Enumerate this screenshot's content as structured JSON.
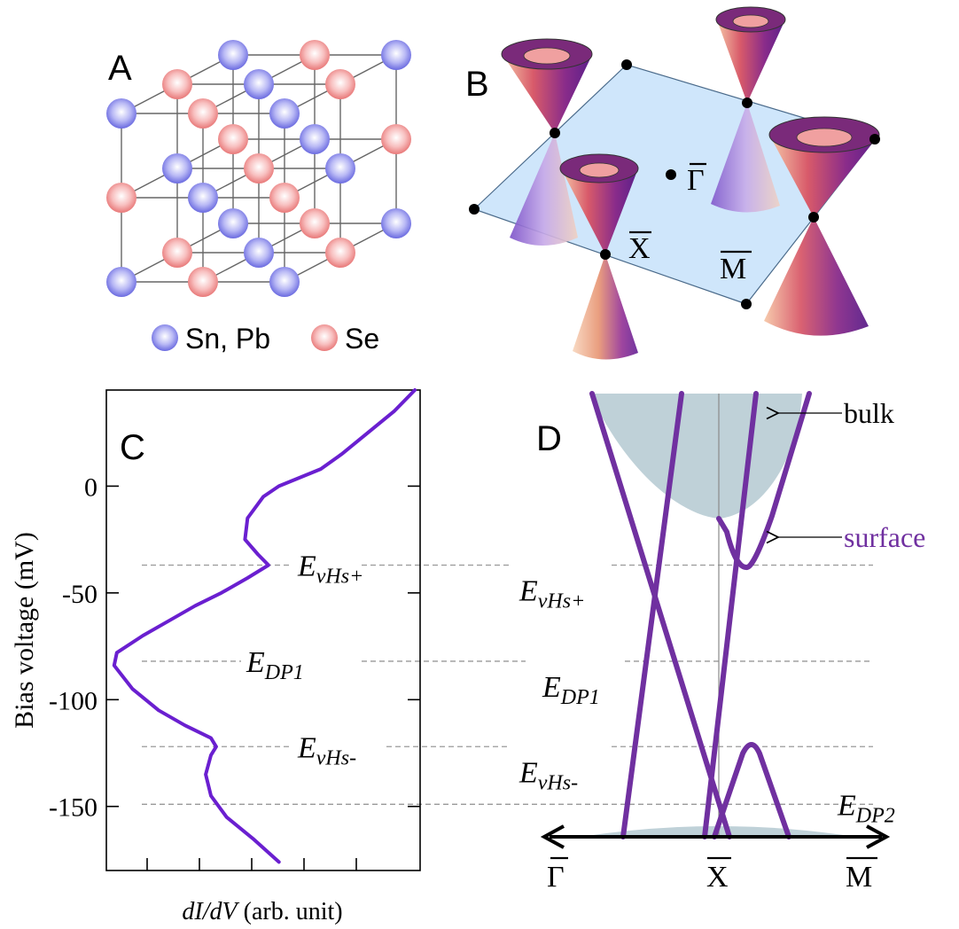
{
  "panels": {
    "a": {
      "label": "A",
      "legend": [
        {
          "text": "Sn, Pb",
          "color": "#7d7de8"
        },
        {
          "text": "Se",
          "color": "#ee8888"
        }
      ]
    },
    "b": {
      "label": "B",
      "points": {
        "gamma": "Γ",
        "x": "X",
        "m": "M"
      }
    },
    "c": {
      "label": "C",
      "ylabel": "Bias voltage (mV)",
      "xlabel_italic": "dI/dV",
      "xlabel_rest": " (arb. unit)",
      "yticks": [
        "0",
        "-50",
        "-100",
        "-150"
      ],
      "line_color": "#6a1fd0"
    },
    "d": {
      "label": "D",
      "bulk_label": "bulk",
      "surface_label": "surface",
      "axis_points": {
        "gamma": "Γ",
        "x": "X",
        "m": "M"
      },
      "surface_color": "#7030a0",
      "bulk_color": "#bfd1d8"
    }
  },
  "energy_levels": [
    {
      "main": "E",
      "sub": "vHs+",
      "mV": -37
    },
    {
      "main": "E",
      "sub": "DP1",
      "mV": -82
    },
    {
      "main": "E",
      "sub": "vHs-",
      "mV": -122
    },
    {
      "main": "E",
      "sub": "DP2",
      "mV": -149
    }
  ],
  "chart_data": {
    "type": "line",
    "series": [
      {
        "x": [
          5.9,
          5.5,
          5.0,
          4.5,
          4.1,
          3.3,
          3.0,
          2.7,
          2.65,
          2.9,
          3.1,
          2.7,
          2.2,
          1.7,
          1.2,
          0.7,
          0.2,
          0.15,
          0.5,
          1.0,
          1.5,
          2.0,
          2.1,
          2.0,
          1.9,
          2.0,
          2.3,
          2.8,
          3.3
        ],
        "y": [
          45,
          35,
          25,
          15,
          8,
          0,
          -5,
          -15,
          -25,
          -32,
          -37,
          -43,
          -50,
          -56,
          -63,
          -70,
          -78,
          -84,
          -95,
          -105,
          -112,
          -118,
          -122,
          -126,
          -135,
          -145,
          -155,
          -165,
          -176
        ]
      }
    ],
    "ylabel": "Bias voltage (mV)",
    "xlabel": "dI/dV (arb. unit)",
    "ylim": [
      -180,
      45
    ],
    "xlim": [
      0,
      6
    ]
  }
}
